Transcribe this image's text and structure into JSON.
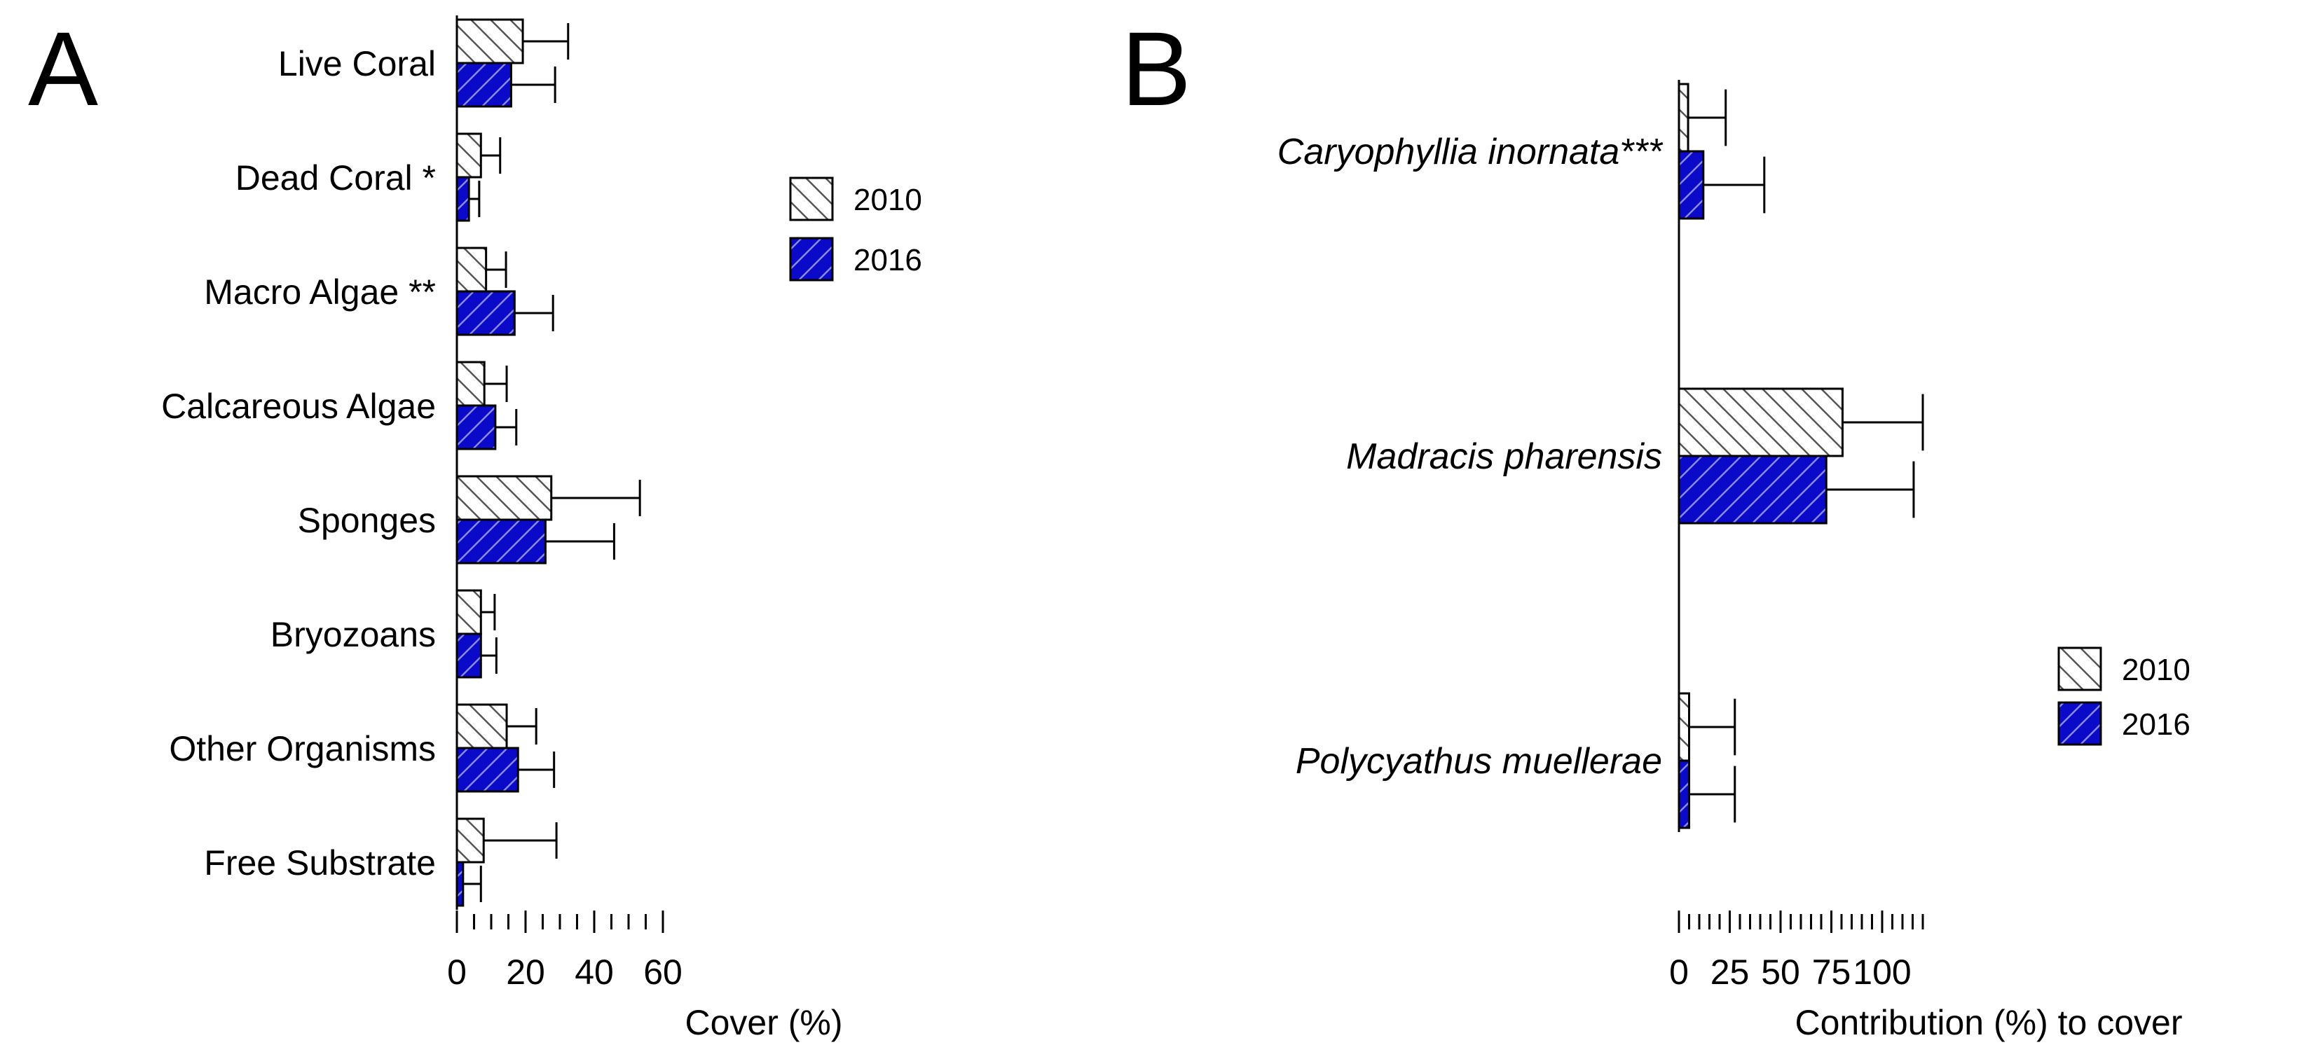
{
  "chart_data": [
    {
      "panel_label": "A",
      "type": "bar",
      "orientation": "horizontal",
      "categories": [
        "Live Coral",
        "Dead Coral *",
        "Macro Algae **",
        "Calcareous Algae",
        "Sponges",
        "Bryozoans",
        "Other Organisms",
        "Free Substrate"
      ],
      "series": [
        {
          "name": "2010",
          "color": "#ffffff",
          "hatch": "backslash",
          "values": [
            19.2,
            7.0,
            8.5,
            8.0,
            27.5,
            7.0,
            14.5,
            7.8
          ],
          "errors": [
            13.2,
            5.6,
            5.8,
            6.5,
            25.8,
            4.0,
            8.6,
            21.2
          ]
        },
        {
          "name": "2016",
          "color": "#0a0ac8",
          "hatch": "slash",
          "values": [
            15.8,
            3.5,
            16.8,
            11.2,
            25.8,
            7.0,
            17.8,
            1.8
          ],
          "errors": [
            12.8,
            3.0,
            11.2,
            6.1,
            20.0,
            4.5,
            10.5,
            5.2
          ]
        }
      ],
      "xlabel": "Cover (%)",
      "xlim": [
        0,
        60
      ],
      "xticks": [
        0,
        20,
        40,
        60
      ],
      "minor_tick_step": 5,
      "legend": {
        "entries": [
          "2010",
          "2016"
        ],
        "position": "right-middle"
      }
    },
    {
      "panel_label": "B",
      "type": "bar",
      "orientation": "horizontal",
      "categories": [
        "Caryophyllia inornata***",
        "Madracis pharensis",
        "Polycyathus muellerae"
      ],
      "series": [
        {
          "name": "2010",
          "color": "#ffffff",
          "hatch": "backslash",
          "values": [
            4.5,
            80.5,
            5.0
          ],
          "errors": [
            18.5,
            39.5,
            22.5
          ]
        },
        {
          "name": "2016",
          "color": "#0a0ac8",
          "hatch": "slash",
          "values": [
            12.0,
            72.5,
            5.0
          ],
          "errors": [
            30.0,
            43.0,
            22.5
          ]
        }
      ],
      "xlabel": "Contribution (%) to cover",
      "xlim": [
        0,
        120
      ],
      "xticks": [
        0,
        25,
        50,
        75,
        100
      ],
      "minor_tick_step": 5,
      "legend": {
        "entries": [
          "2010",
          "2016"
        ],
        "position": "bottom-right"
      }
    }
  ]
}
